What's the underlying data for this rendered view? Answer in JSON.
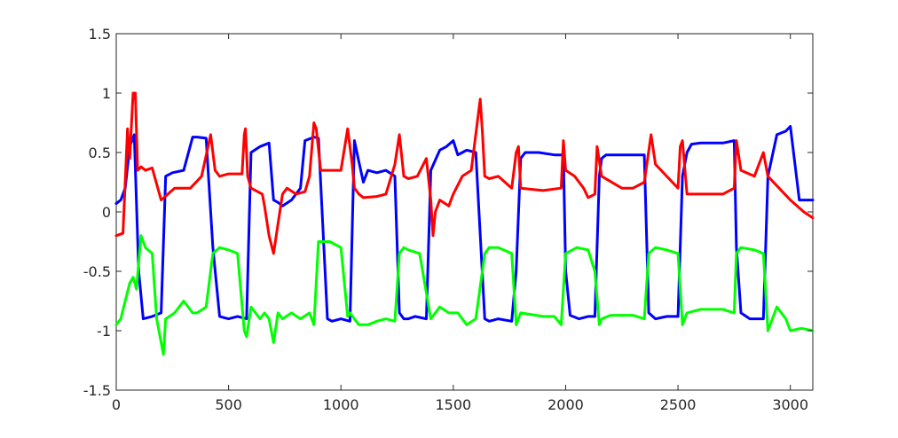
{
  "chart_data": {
    "type": "line",
    "title": "",
    "xlabel": "",
    "ylabel": "",
    "xlim": [
      0,
      3100
    ],
    "ylim": [
      -1.5,
      1.5
    ],
    "grid": false,
    "x_ticks": [
      0,
      500,
      1000,
      1500,
      2000,
      2500,
      3000
    ],
    "x_tick_labels": [
      "0",
      "500",
      "1000",
      "1500",
      "2000",
      "2500",
      "3000"
    ],
    "y_ticks": [
      -1.5,
      -1,
      -0.5,
      0,
      0.5,
      1,
      1.5
    ],
    "y_tick_labels": [
      "-1.5",
      "-1",
      "-0.5",
      "0",
      "0.5",
      "1",
      "1.5"
    ],
    "series": [
      {
        "color": "#0000ff",
        "x": [
          0,
          20,
          40,
          60,
          80,
          100,
          120,
          160,
          200,
          220,
          250,
          300,
          340,
          360,
          400,
          430,
          460,
          500,
          540,
          580,
          600,
          640,
          680,
          700,
          720,
          740,
          780,
          820,
          840,
          880,
          900,
          940,
          960,
          1000,
          1040,
          1060,
          1080,
          1100,
          1120,
          1160,
          1200,
          1240,
          1260,
          1280,
          1300,
          1330,
          1380,
          1400,
          1440,
          1470,
          1500,
          1520,
          1540,
          1560,
          1600,
          1640,
          1660,
          1700,
          1760,
          1780,
          1800,
          1820,
          1880,
          1950,
          1990,
          2000,
          2020,
          2060,
          2100,
          2130,
          2150,
          2160,
          2180,
          2250,
          2350,
          2370,
          2400,
          2450,
          2500,
          2520,
          2540,
          2560,
          2600,
          2700,
          2750,
          2760,
          2780,
          2820,
          2880,
          2900,
          2940,
          2980,
          3000,
          3040,
          3070,
          3100
        ],
        "y": [
          0.07,
          0.1,
          0.2,
          0.55,
          0.65,
          -0.5,
          -0.9,
          -0.88,
          -0.85,
          0.3,
          0.33,
          0.35,
          0.63,
          0.63,
          0.62,
          -0.3,
          -0.88,
          -0.9,
          -0.88,
          -0.9,
          0.5,
          0.55,
          0.58,
          0.1,
          0.08,
          0.05,
          0.1,
          0.2,
          0.6,
          0.63,
          0.62,
          -0.9,
          -0.92,
          -0.9,
          -0.92,
          0.6,
          0.42,
          0.25,
          0.35,
          0.33,
          0.35,
          0.3,
          -0.85,
          -0.9,
          -0.9,
          -0.88,
          -0.9,
          0.35,
          0.52,
          0.55,
          0.6,
          0.48,
          0.5,
          0.52,
          0.5,
          -0.9,
          -0.92,
          -0.9,
          -0.92,
          -0.5,
          0.45,
          0.5,
          0.5,
          0.48,
          0.48,
          -0.5,
          -0.87,
          -0.9,
          -0.88,
          -0.88,
          0.3,
          0.45,
          0.48,
          0.48,
          0.48,
          -0.85,
          -0.9,
          -0.88,
          -0.88,
          0.3,
          0.5,
          0.57,
          0.58,
          0.58,
          0.6,
          -0.3,
          -0.85,
          -0.9,
          -0.9,
          0.3,
          0.65,
          0.68,
          0.72,
          0.1,
          0.1,
          0.1
        ]
      },
      {
        "color": "#ff0000",
        "x": [
          0,
          30,
          50,
          60,
          75,
          85,
          95,
          110,
          130,
          160,
          200,
          230,
          260,
          300,
          330,
          380,
          420,
          440,
          460,
          500,
          560,
          570,
          575,
          585,
          600,
          650,
          660,
          680,
          700,
          720,
          740,
          760,
          800,
          840,
          860,
          880,
          890,
          910,
          930,
          1000,
          1030,
          1050,
          1060,
          1080,
          1100,
          1160,
          1200,
          1240,
          1260,
          1280,
          1300,
          1340,
          1380,
          1400,
          1410,
          1420,
          1440,
          1480,
          1500,
          1540,
          1580,
          1620,
          1630,
          1640,
          1660,
          1700,
          1760,
          1780,
          1790,
          1800,
          1900,
          1980,
          1990,
          2000,
          2040,
          2080,
          2100,
          2130,
          2140,
          2160,
          2250,
          2300,
          2350,
          2380,
          2400,
          2500,
          2510,
          2520,
          2540,
          2700,
          2750,
          2760,
          2780,
          2840,
          2880,
          2900,
          2950,
          3000,
          3060,
          3100
        ],
        "y": [
          -0.2,
          -0.18,
          0.7,
          0.45,
          1.0,
          1.0,
          0.35,
          0.38,
          0.35,
          0.37,
          0.1,
          0.15,
          0.2,
          0.2,
          0.2,
          0.3,
          0.65,
          0.35,
          0.3,
          0.32,
          0.32,
          0.65,
          0.7,
          0.3,
          0.2,
          0.15,
          0.05,
          -0.2,
          -0.35,
          -0.1,
          0.15,
          0.2,
          0.15,
          0.17,
          0.3,
          0.75,
          0.7,
          0.35,
          0.35,
          0.35,
          0.7,
          0.4,
          0.2,
          0.15,
          0.12,
          0.13,
          0.15,
          0.4,
          0.65,
          0.3,
          0.28,
          0.3,
          0.45,
          0.1,
          -0.2,
          0.0,
          0.1,
          0.05,
          0.15,
          0.3,
          0.35,
          0.95,
          0.65,
          0.3,
          0.28,
          0.3,
          0.2,
          0.5,
          0.55,
          0.2,
          0.18,
          0.2,
          0.6,
          0.35,
          0.3,
          0.2,
          0.12,
          0.15,
          0.55,
          0.3,
          0.2,
          0.2,
          0.25,
          0.65,
          0.4,
          0.2,
          0.55,
          0.6,
          0.15,
          0.15,
          0.2,
          0.6,
          0.35,
          0.3,
          0.5,
          0.3,
          0.2,
          0.1,
          0.0,
          -0.05
        ]
      },
      {
        "color": "#00ff00",
        "x": [
          0,
          20,
          40,
          60,
          75,
          90,
          110,
          130,
          160,
          180,
          200,
          210,
          220,
          260,
          300,
          340,
          360,
          400,
          430,
          460,
          500,
          540,
          570,
          580,
          600,
          640,
          660,
          680,
          700,
          720,
          740,
          780,
          820,
          860,
          880,
          900,
          950,
          1000,
          1030,
          1040,
          1060,
          1080,
          1120,
          1160,
          1200,
          1240,
          1260,
          1280,
          1300,
          1350,
          1400,
          1420,
          1440,
          1480,
          1520,
          1560,
          1600,
          1640,
          1660,
          1700,
          1760,
          1780,
          1800,
          1900,
          1950,
          1980,
          2000,
          2050,
          2100,
          2130,
          2150,
          2160,
          2200,
          2300,
          2350,
          2370,
          2400,
          2450,
          2500,
          2520,
          2540,
          2600,
          2700,
          2750,
          2760,
          2780,
          2840,
          2880,
          2900,
          2940,
          2980,
          3000,
          3050,
          3100
        ],
        "y": [
          -0.95,
          -0.9,
          -0.75,
          -0.6,
          -0.55,
          -0.65,
          -0.2,
          -0.3,
          -0.35,
          -0.9,
          -1.1,
          -1.2,
          -0.9,
          -0.85,
          -0.75,
          -0.85,
          -0.85,
          -0.8,
          -0.35,
          -0.3,
          -0.32,
          -0.35,
          -1.0,
          -1.05,
          -0.8,
          -0.9,
          -0.85,
          -0.9,
          -1.1,
          -0.85,
          -0.9,
          -0.85,
          -0.9,
          -0.85,
          -0.95,
          -0.25,
          -0.25,
          -0.3,
          -0.88,
          -0.85,
          -0.9,
          -0.95,
          -0.95,
          -0.92,
          -0.9,
          -0.92,
          -0.35,
          -0.3,
          -0.32,
          -0.35,
          -0.9,
          -0.85,
          -0.8,
          -0.85,
          -0.85,
          -0.95,
          -0.9,
          -0.35,
          -0.3,
          -0.3,
          -0.35,
          -0.95,
          -0.85,
          -0.88,
          -0.88,
          -0.95,
          -0.35,
          -0.3,
          -0.32,
          -0.5,
          -0.95,
          -0.9,
          -0.87,
          -0.87,
          -0.9,
          -0.35,
          -0.3,
          -0.32,
          -0.35,
          -0.95,
          -0.85,
          -0.82,
          -0.82,
          -0.85,
          -0.35,
          -0.3,
          -0.32,
          -0.35,
          -1.0,
          -0.8,
          -0.9,
          -1.0,
          -0.98,
          -1.0
        ]
      }
    ]
  }
}
